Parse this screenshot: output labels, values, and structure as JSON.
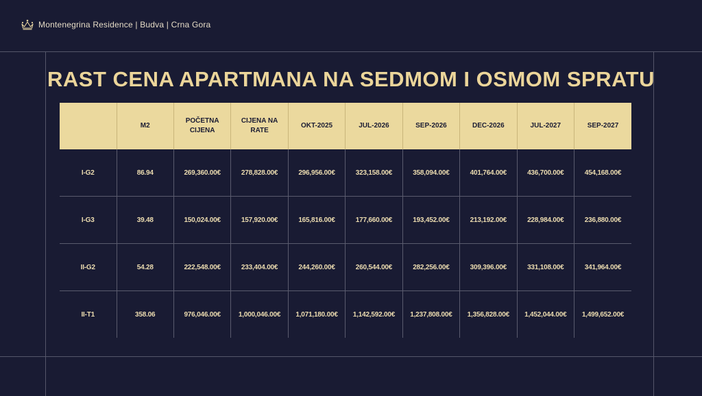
{
  "header": {
    "brand": "Montenegrina Residence | Budva | Crna Gora",
    "logo_icon": "crown-icon"
  },
  "title": "RAST CENA APARTMANA NA SEDMOM I OSMOM SPRATU",
  "colors": {
    "background": "#191b33",
    "accent": "#ebd59a",
    "header_fill": "#ebd99e"
  },
  "table": {
    "headers": [
      "",
      "M2",
      "POČETNA CIJENA",
      "CIJENA NA RATE",
      "OKT-2025",
      "JUL-2026",
      "SEP-2026",
      "DEC-2026",
      "JUL-2027",
      "SEP-2027"
    ],
    "rows": [
      [
        "I-G2",
        "86.94",
        "269,360.00€",
        "278,828.00€",
        "296,956.00€",
        "323,158.00€",
        "358,094.00€",
        "401,764.00€",
        "436,700.00€",
        "454,168.00€"
      ],
      [
        "I-G3",
        "39.48",
        "150,024.00€",
        "157,920.00€",
        "165,816.00€",
        "177,660.00€",
        "193,452.00€",
        "213,192.00€",
        "228,984.00€",
        "236,880.00€"
      ],
      [
        "II-G2",
        "54.28",
        "222,548.00€",
        "233,404.00€",
        "244,260.00€",
        "260,544.00€",
        "282,256.00€",
        "309,396.00€",
        "331,108.00€",
        "341,964.00€"
      ],
      [
        "II-T1",
        "358.06",
        "976,046.00€",
        "1,000,046.00€",
        "1,071,180.00€",
        "1,142,592.00€",
        "1,237,808.00€",
        "1,356,828.00€",
        "1,452,044.00€",
        "1,499,652.00€"
      ]
    ]
  }
}
